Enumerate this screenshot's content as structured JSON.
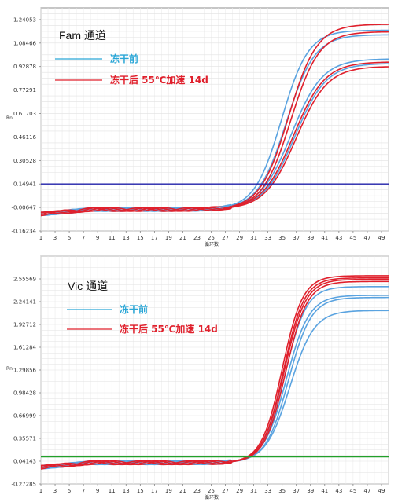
{
  "chart_data": [
    {
      "type": "line",
      "title": "Fam 通道",
      "xlabel": "循环数",
      "ylabel": "Rn",
      "x_ticks": [
        1,
        3,
        5,
        7,
        9,
        11,
        13,
        15,
        17,
        19,
        21,
        23,
        25,
        27,
        29,
        31,
        33,
        35,
        37,
        39,
        41,
        43,
        45,
        47,
        49
      ],
      "y_ticks": [
        "1.24053",
        "1.08466",
        "0.92878",
        "0.77291",
        "0.61703",
        "0.46116",
        "0.30528",
        "0.14941",
        "-0.00647",
        "-0.16234"
      ],
      "xlim": [
        1,
        50
      ],
      "ylim": [
        -0.16234,
        1.3184
      ],
      "grid": true,
      "legend_position": "top-left",
      "threshold": {
        "value": 0.14941,
        "color": "#1f1fa8"
      },
      "legend": [
        {
          "label": "冻干前",
          "color": "#2aa6d6"
        },
        {
          "label": "冻干后 55℃加速 14d",
          "color": "#e0202c"
        }
      ],
      "series": [
        {
          "group": "冻干前",
          "color": "#5aa3e0",
          "baseline": -0.02,
          "plateau": 1.17,
          "midpoint": 34.9,
          "slope": 1.9
        },
        {
          "group": "冻干前",
          "color": "#5aa3e0",
          "baseline": -0.02,
          "plateau": 1.14,
          "midpoint": 35.6,
          "slope": 2.0
        },
        {
          "group": "冻干前",
          "color": "#5aa3e0",
          "baseline": -0.02,
          "plateau": 0.98,
          "midpoint": 36.3,
          "slope": 2.2
        },
        {
          "group": "冻干前",
          "color": "#5aa3e0",
          "baseline": -0.02,
          "plateau": 0.95,
          "midpoint": 36.8,
          "slope": 2.2
        },
        {
          "group": "冻干后 55℃加速 14d",
          "color": "#e0202c",
          "baseline": -0.02,
          "plateau": 1.21,
          "midpoint": 35.9,
          "slope": 2.0
        },
        {
          "group": "冻干后 55℃加速 14d",
          "color": "#e0202c",
          "baseline": -0.02,
          "plateau": 1.16,
          "midpoint": 36.2,
          "slope": 2.0
        },
        {
          "group": "冻干后 55℃加速 14d",
          "color": "#e0202c",
          "baseline": -0.02,
          "plateau": 0.96,
          "midpoint": 36.6,
          "slope": 2.2
        },
        {
          "group": "冻干后 55℃加速 14d",
          "color": "#e0202c",
          "baseline": -0.02,
          "plateau": 0.93,
          "midpoint": 37.0,
          "slope": 2.2
        }
      ]
    },
    {
      "type": "line",
      "title": "Vic 通道",
      "xlabel": "循环数",
      "ylabel": "Rn",
      "x_ticks": [
        1,
        3,
        5,
        7,
        9,
        11,
        13,
        15,
        17,
        19,
        21,
        23,
        25,
        27,
        29,
        31,
        33,
        35,
        37,
        39,
        41,
        43,
        45,
        47,
        49
      ],
      "y_ticks": [
        "2.55569",
        "2.24141",
        "1.92712",
        "1.61284",
        "1.29856",
        "0.98428",
        "0.66999",
        "0.35571",
        "0.04143",
        "-0.27285"
      ],
      "xlim": [
        1,
        50
      ],
      "ylim": [
        -0.27285,
        2.86997
      ],
      "grid": true,
      "legend_position": "top-left",
      "threshold": {
        "value": 0.1,
        "color": "#22a02a"
      },
      "legend": [
        {
          "label": "冻干前",
          "color": "#2aa6d6"
        },
        {
          "label": "冻干后 55℃加速 14d",
          "color": "#e0202c"
        }
      ],
      "series": [
        {
          "group": "冻干前",
          "color": "#5aa3e0",
          "baseline": 0.02,
          "plateau": 2.45,
          "midpoint": 35.4,
          "slope": 1.5
        },
        {
          "group": "冻干前",
          "color": "#5aa3e0",
          "baseline": 0.02,
          "plateau": 2.33,
          "midpoint": 35.6,
          "slope": 1.6
        },
        {
          "group": "冻干前",
          "color": "#5aa3e0",
          "baseline": 0.02,
          "plateau": 2.3,
          "midpoint": 35.9,
          "slope": 1.6
        },
        {
          "group": "冻干前",
          "color": "#5aa3e0",
          "baseline": 0.02,
          "plateau": 2.12,
          "midpoint": 36.1,
          "slope": 1.7
        },
        {
          "group": "冻干后 55℃加速 14d",
          "color": "#e0202c",
          "baseline": 0.02,
          "plateau": 2.6,
          "midpoint": 35.0,
          "slope": 1.45
        },
        {
          "group": "冻干后 55℃加速 14d",
          "color": "#e0202c",
          "baseline": 0.02,
          "plateau": 2.57,
          "midpoint": 35.2,
          "slope": 1.45
        },
        {
          "group": "冻干后 55℃加速 14d",
          "color": "#e0202c",
          "baseline": 0.02,
          "plateau": 2.55,
          "midpoint": 35.3,
          "slope": 1.5
        },
        {
          "group": "冻干后 55℃加速 14d",
          "color": "#e0202c",
          "baseline": 0.02,
          "plateau": 2.52,
          "midpoint": 35.5,
          "slope": 1.5
        }
      ]
    }
  ]
}
